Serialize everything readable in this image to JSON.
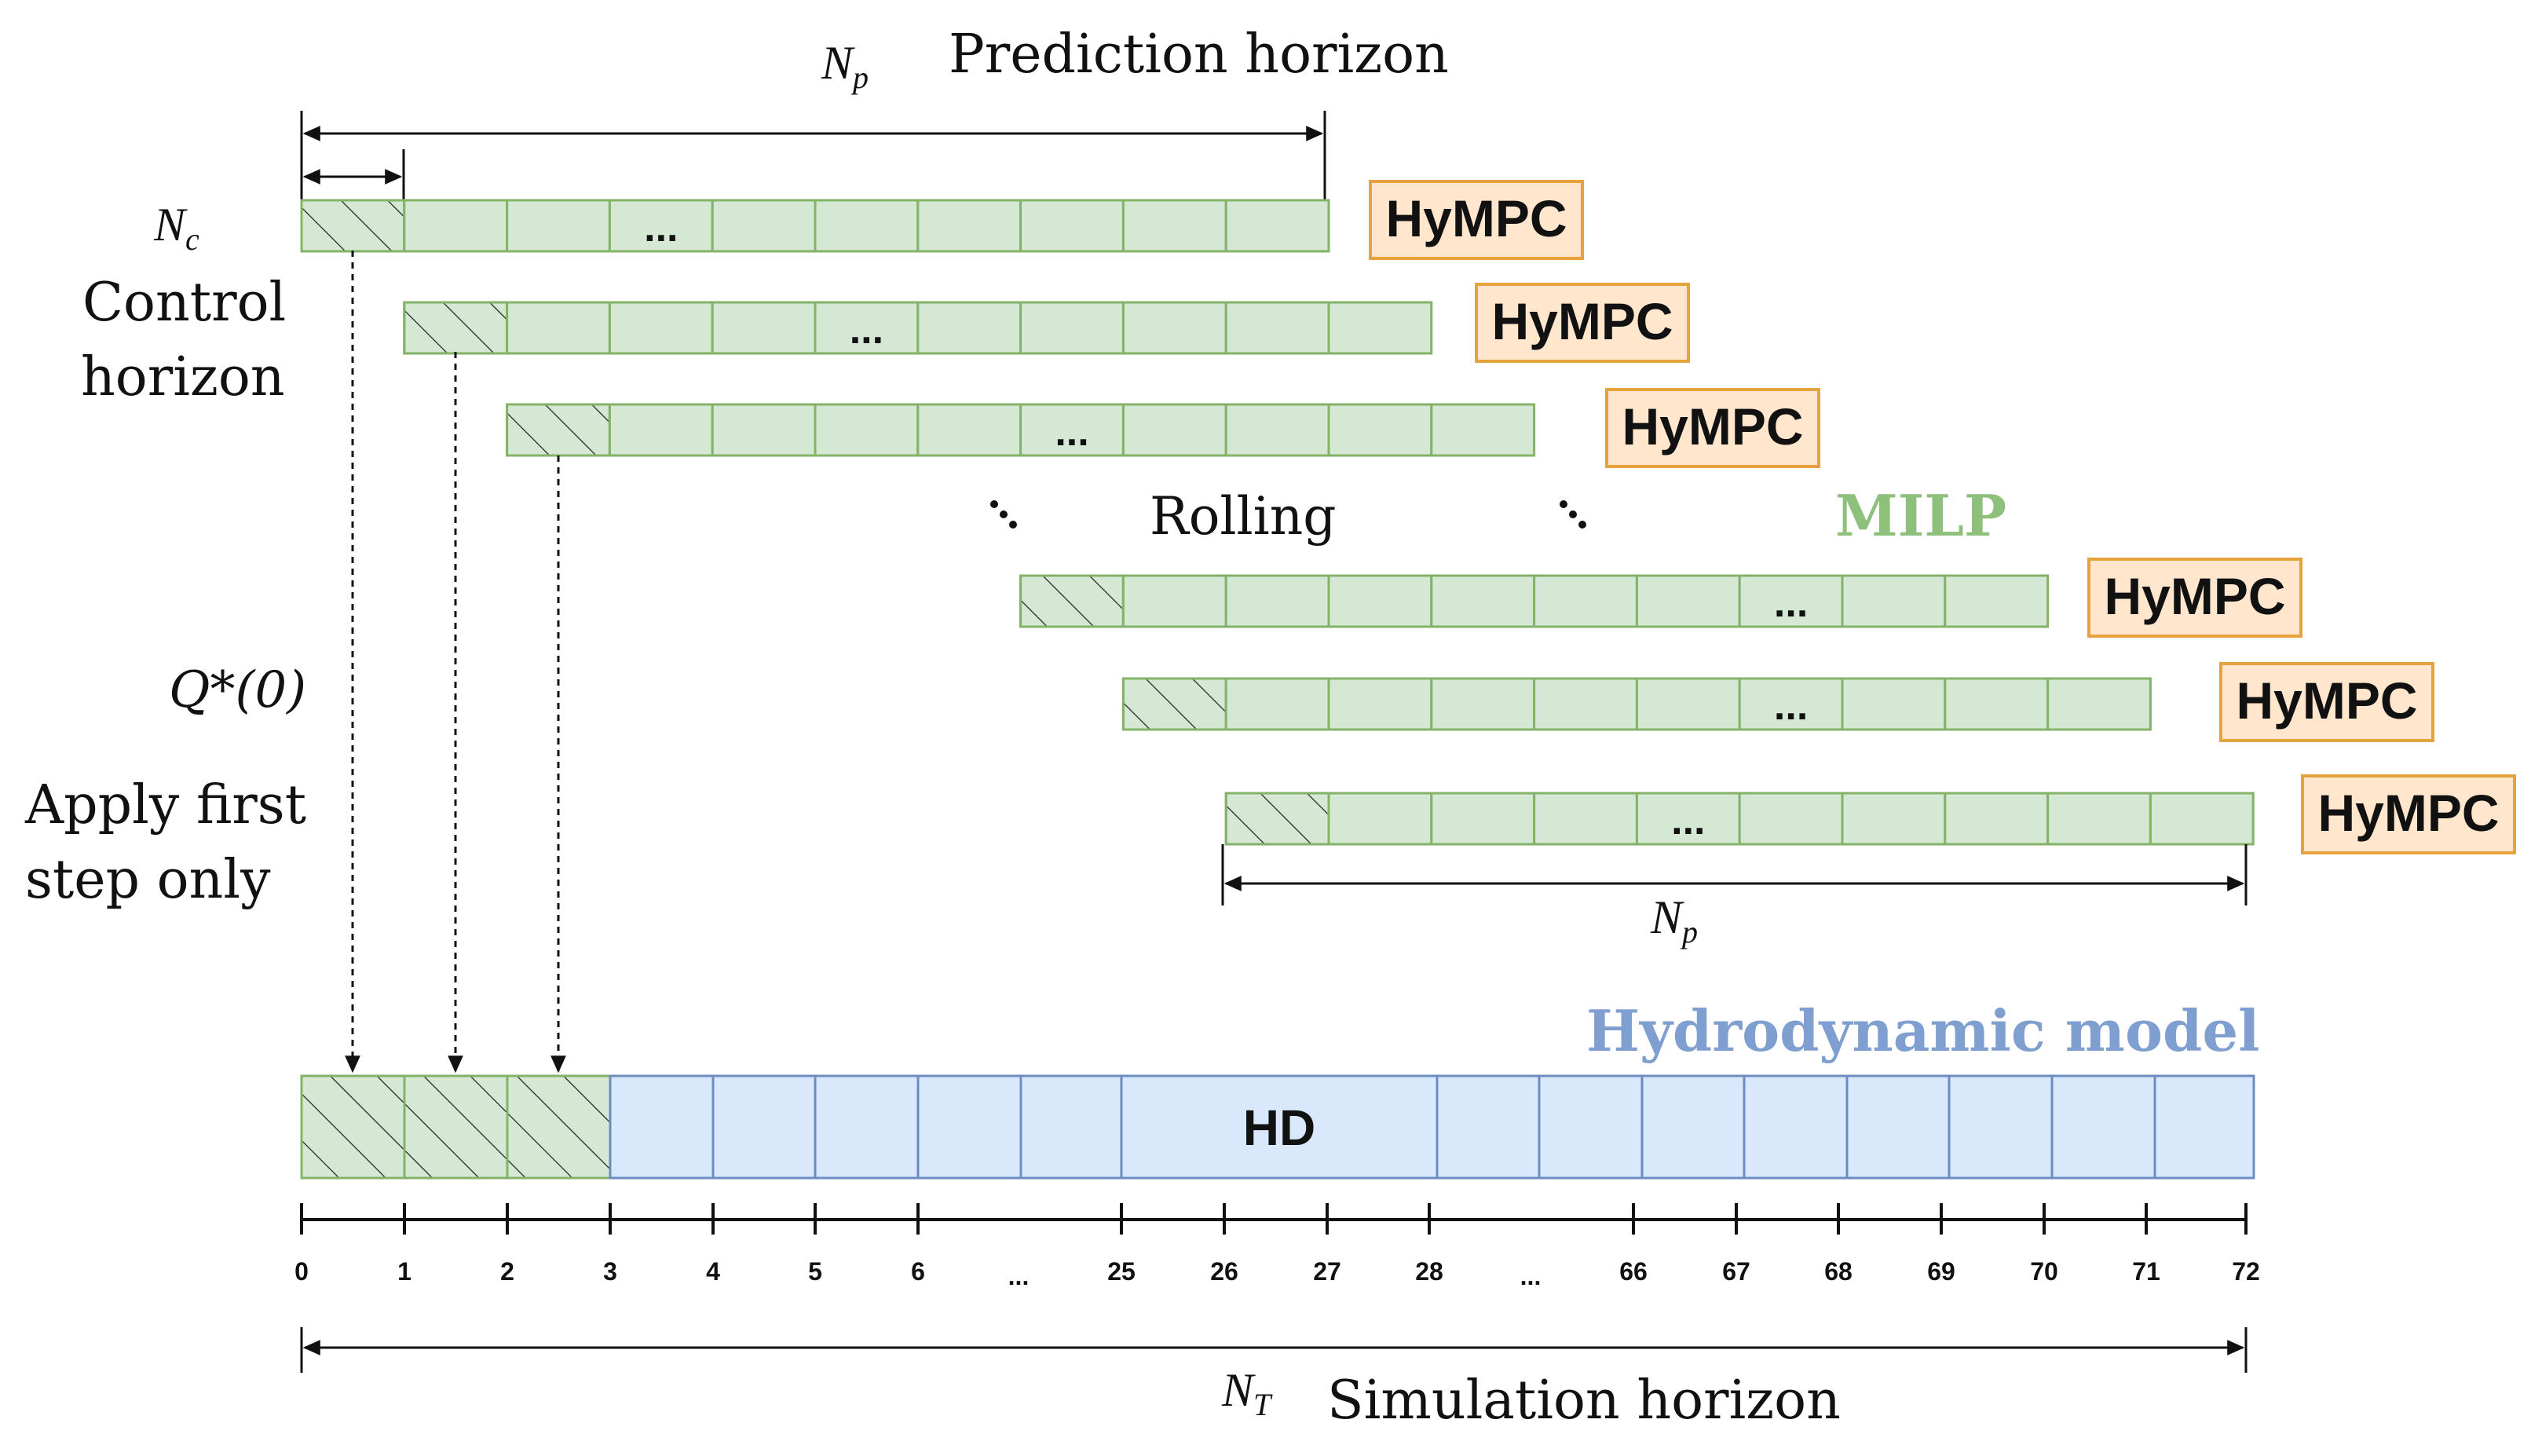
{
  "labels": {
    "np_top": "N",
    "np_top_sub": "p",
    "prediction_horizon": "Prediction horizon",
    "nc": "N",
    "nc_sub": "c",
    "control_line1": "Control",
    "control_line2": "horizon",
    "rolling": "Rolling",
    "milp": "MILP",
    "q_star": "Q*(0)",
    "apply_line1": "Apply first",
    "apply_line2": "step only",
    "np_bottom": "N",
    "np_bottom_sub": "p",
    "hydrodynamic_model": "Hydrodynamic model",
    "hd": "HD",
    "nt": "N",
    "nt_sub": "T",
    "simulation_horizon": "Simulation horizon",
    "ellipsis": "..."
  },
  "hympc_label": "HyMPC",
  "ticks": [
    "0",
    "1",
    "2",
    "3",
    "4",
    "5",
    "6",
    "...",
    "25",
    "26",
    "27",
    "28",
    "...",
    "66",
    "67",
    "68",
    "69",
    "70",
    "71",
    "72"
  ],
  "colors": {
    "milp_green": "#8dc07a",
    "hydro_blue": "#7f9fd1",
    "bar_green_fill": "#d5e8d4",
    "bar_green_stroke": "#82b366",
    "bar_blue_fill": "#dae8fc",
    "bar_blue_stroke": "#6c8ebf",
    "hympc_fill": "#ffe6cc",
    "hympc_stroke": "#e6a33c"
  }
}
